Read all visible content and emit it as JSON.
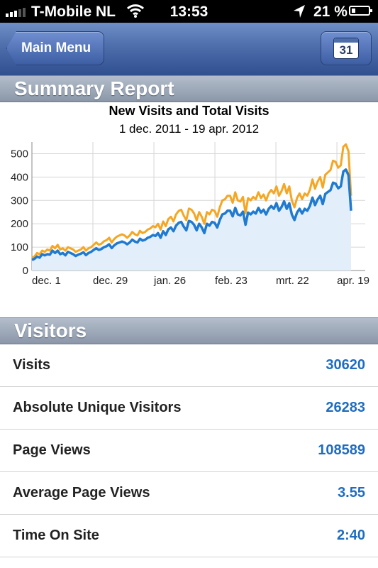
{
  "status": {
    "carrier": "T-Mobile NL",
    "time": "13:53",
    "battery": "21 %",
    "battery_level": 0.21
  },
  "nav": {
    "back_label": "Main Menu",
    "calendar_day": "31"
  },
  "summary": {
    "header": "Summary Report"
  },
  "chart_data": {
    "type": "area",
    "title": "New Visits and Total Visits",
    "subtitle": "1 dec. 2011 - 19 apr. 2012",
    "xlabel": "",
    "ylabel": "",
    "ylim": [
      0,
      550
    ],
    "y_ticks": [
      0,
      100,
      200,
      300,
      400,
      500
    ],
    "x_tick_labels": [
      "dec. 1",
      "dec. 29",
      "jan. 26",
      "feb. 23",
      "mrt. 22",
      "apr. 19"
    ],
    "grid": true,
    "colors": {
      "total": "#f5a623",
      "new": "#1f7ad0",
      "fill": "#e3eefb"
    },
    "series": [
      {
        "key": "total",
        "values": [
          55,
          60,
          75,
          70,
          85,
          80,
          90,
          85,
          105,
          95,
          110,
          90,
          95,
          85,
          100,
          95,
          90,
          80,
          85,
          90,
          100,
          85,
          95,
          100,
          110,
          120,
          110,
          115,
          125,
          130,
          140,
          120,
          135,
          145,
          150,
          155,
          150,
          140,
          150,
          165,
          155,
          150,
          170,
          160,
          165,
          175,
          180,
          190,
          185,
          200,
          175,
          210,
          190,
          220,
          230,
          210,
          240,
          255,
          260,
          235,
          215,
          265,
          260,
          245,
          215,
          250,
          230,
          200,
          250,
          240,
          260,
          255,
          230,
          270,
          300,
          305,
          320,
          320,
          290,
          335,
          300,
          295,
          315,
          245,
          310,
          300,
          315,
          305,
          335,
          310,
          325,
          300,
          330,
          345,
          330,
          360,
          320,
          340,
          370,
          330,
          360,
          300,
          270,
          310,
          330,
          305,
          330,
          320,
          345,
          390,
          350,
          380,
          400,
          355,
          410,
          420,
          430,
          470,
          465,
          440,
          450,
          530,
          540,
          510,
          320
        ]
      },
      {
        "key": "new",
        "values": [
          45,
          50,
          60,
          55,
          70,
          65,
          70,
          68,
          85,
          75,
          85,
          70,
          75,
          65,
          80,
          75,
          70,
          62,
          68,
          72,
          78,
          66,
          75,
          80,
          88,
          95,
          88,
          92,
          100,
          104,
          112,
          96,
          108,
          116,
          120,
          124,
          120,
          112,
          120,
          132,
          124,
          120,
          136,
          128,
          132,
          140,
          144,
          152,
          148,
          160,
          140,
          168,
          152,
          176,
          184,
          168,
          192,
          204,
          208,
          188,
          172,
          212,
          208,
          196,
          172,
          200,
          184,
          160,
          200,
          192,
          208,
          204,
          184,
          216,
          240,
          244,
          256,
          256,
          232,
          268,
          240,
          236,
          252,
          196,
          248,
          240,
          252,
          244,
          268,
          248,
          260,
          240,
          264,
          276,
          264,
          288,
          256,
          272,
          296,
          264,
          288,
          240,
          216,
          248,
          264,
          244,
          264,
          256,
          276,
          312,
          280,
          304,
          320,
          284,
          328,
          336,
          344,
          376,
          372,
          352,
          360,
          424,
          432,
          408,
          256
        ]
      }
    ]
  },
  "visitors": {
    "header": "Visitors",
    "rows": [
      {
        "label": "Visits",
        "value": "30620"
      },
      {
        "label": "Absolute Unique Visitors",
        "value": "26283"
      },
      {
        "label": "Page Views",
        "value": "108589"
      },
      {
        "label": "Average Page Views",
        "value": "3.55"
      },
      {
        "label": "Time On Site",
        "value": "2:40"
      }
    ]
  }
}
